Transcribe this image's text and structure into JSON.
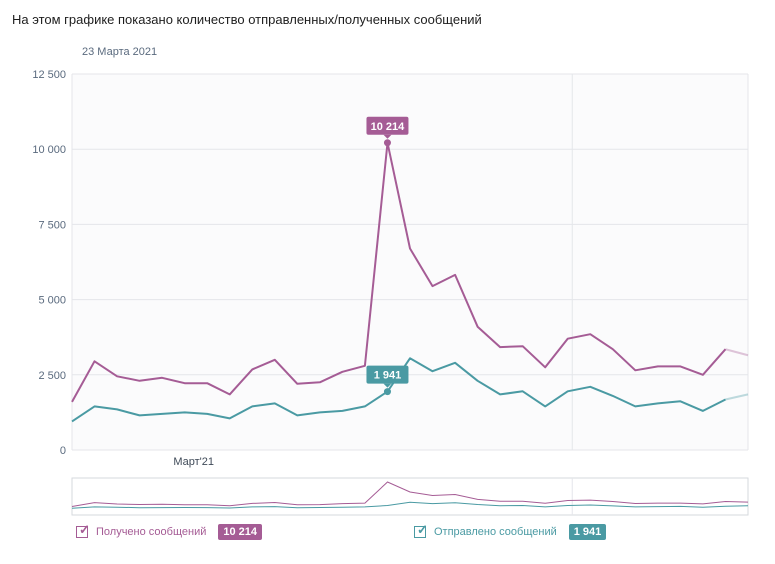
{
  "title": "На этом графике показано количество отправленных/полученных сообщений",
  "date_label": "23 Марта 2021",
  "colors": {
    "received": "#a55c95",
    "sent": "#4a9aa3"
  },
  "chart_data": {
    "type": "line",
    "x_tick_label": "Март'21",
    "y_ticks": [
      "0",
      "2 500",
      "5 000",
      "7 500",
      "10 000",
      "12 500"
    ],
    "y_tick_values": [
      0,
      2500,
      5000,
      7500,
      10000,
      12500
    ],
    "ylim": [
      0,
      12500
    ],
    "grid": true,
    "legend_position": "bottom",
    "series": [
      {
        "name": "Получено сообщений",
        "color": "#a55c95",
        "highlight_index": 14,
        "highlight_label": "10 214",
        "values": [
          1600,
          2950,
          2450,
          2300,
          2400,
          2220,
          2220,
          1850,
          2680,
          3000,
          2200,
          2250,
          2600,
          2800,
          10214,
          6700,
          5450,
          5820,
          4100,
          3420,
          3450,
          2750,
          3700,
          3850,
          3350,
          2650,
          2780,
          2780,
          2500,
          3350,
          3150
        ]
      },
      {
        "name": "Отправлено сообщений",
        "color": "#4a9aa3",
        "highlight_index": 14,
        "highlight_label": "1 941",
        "values": [
          950,
          1450,
          1350,
          1150,
          1200,
          1250,
          1200,
          1050,
          1450,
          1550,
          1150,
          1250,
          1300,
          1450,
          1941,
          3050,
          2620,
          2900,
          2300,
          1850,
          1950,
          1450,
          1950,
          2100,
          1800,
          1450,
          1550,
          1620,
          1300,
          1680,
          1850
        ]
      }
    ]
  },
  "legend": [
    {
      "label": "Получено сообщений",
      "badge": "10 214"
    },
    {
      "label": "Отправлено сообщений",
      "badge": "1 941"
    }
  ]
}
